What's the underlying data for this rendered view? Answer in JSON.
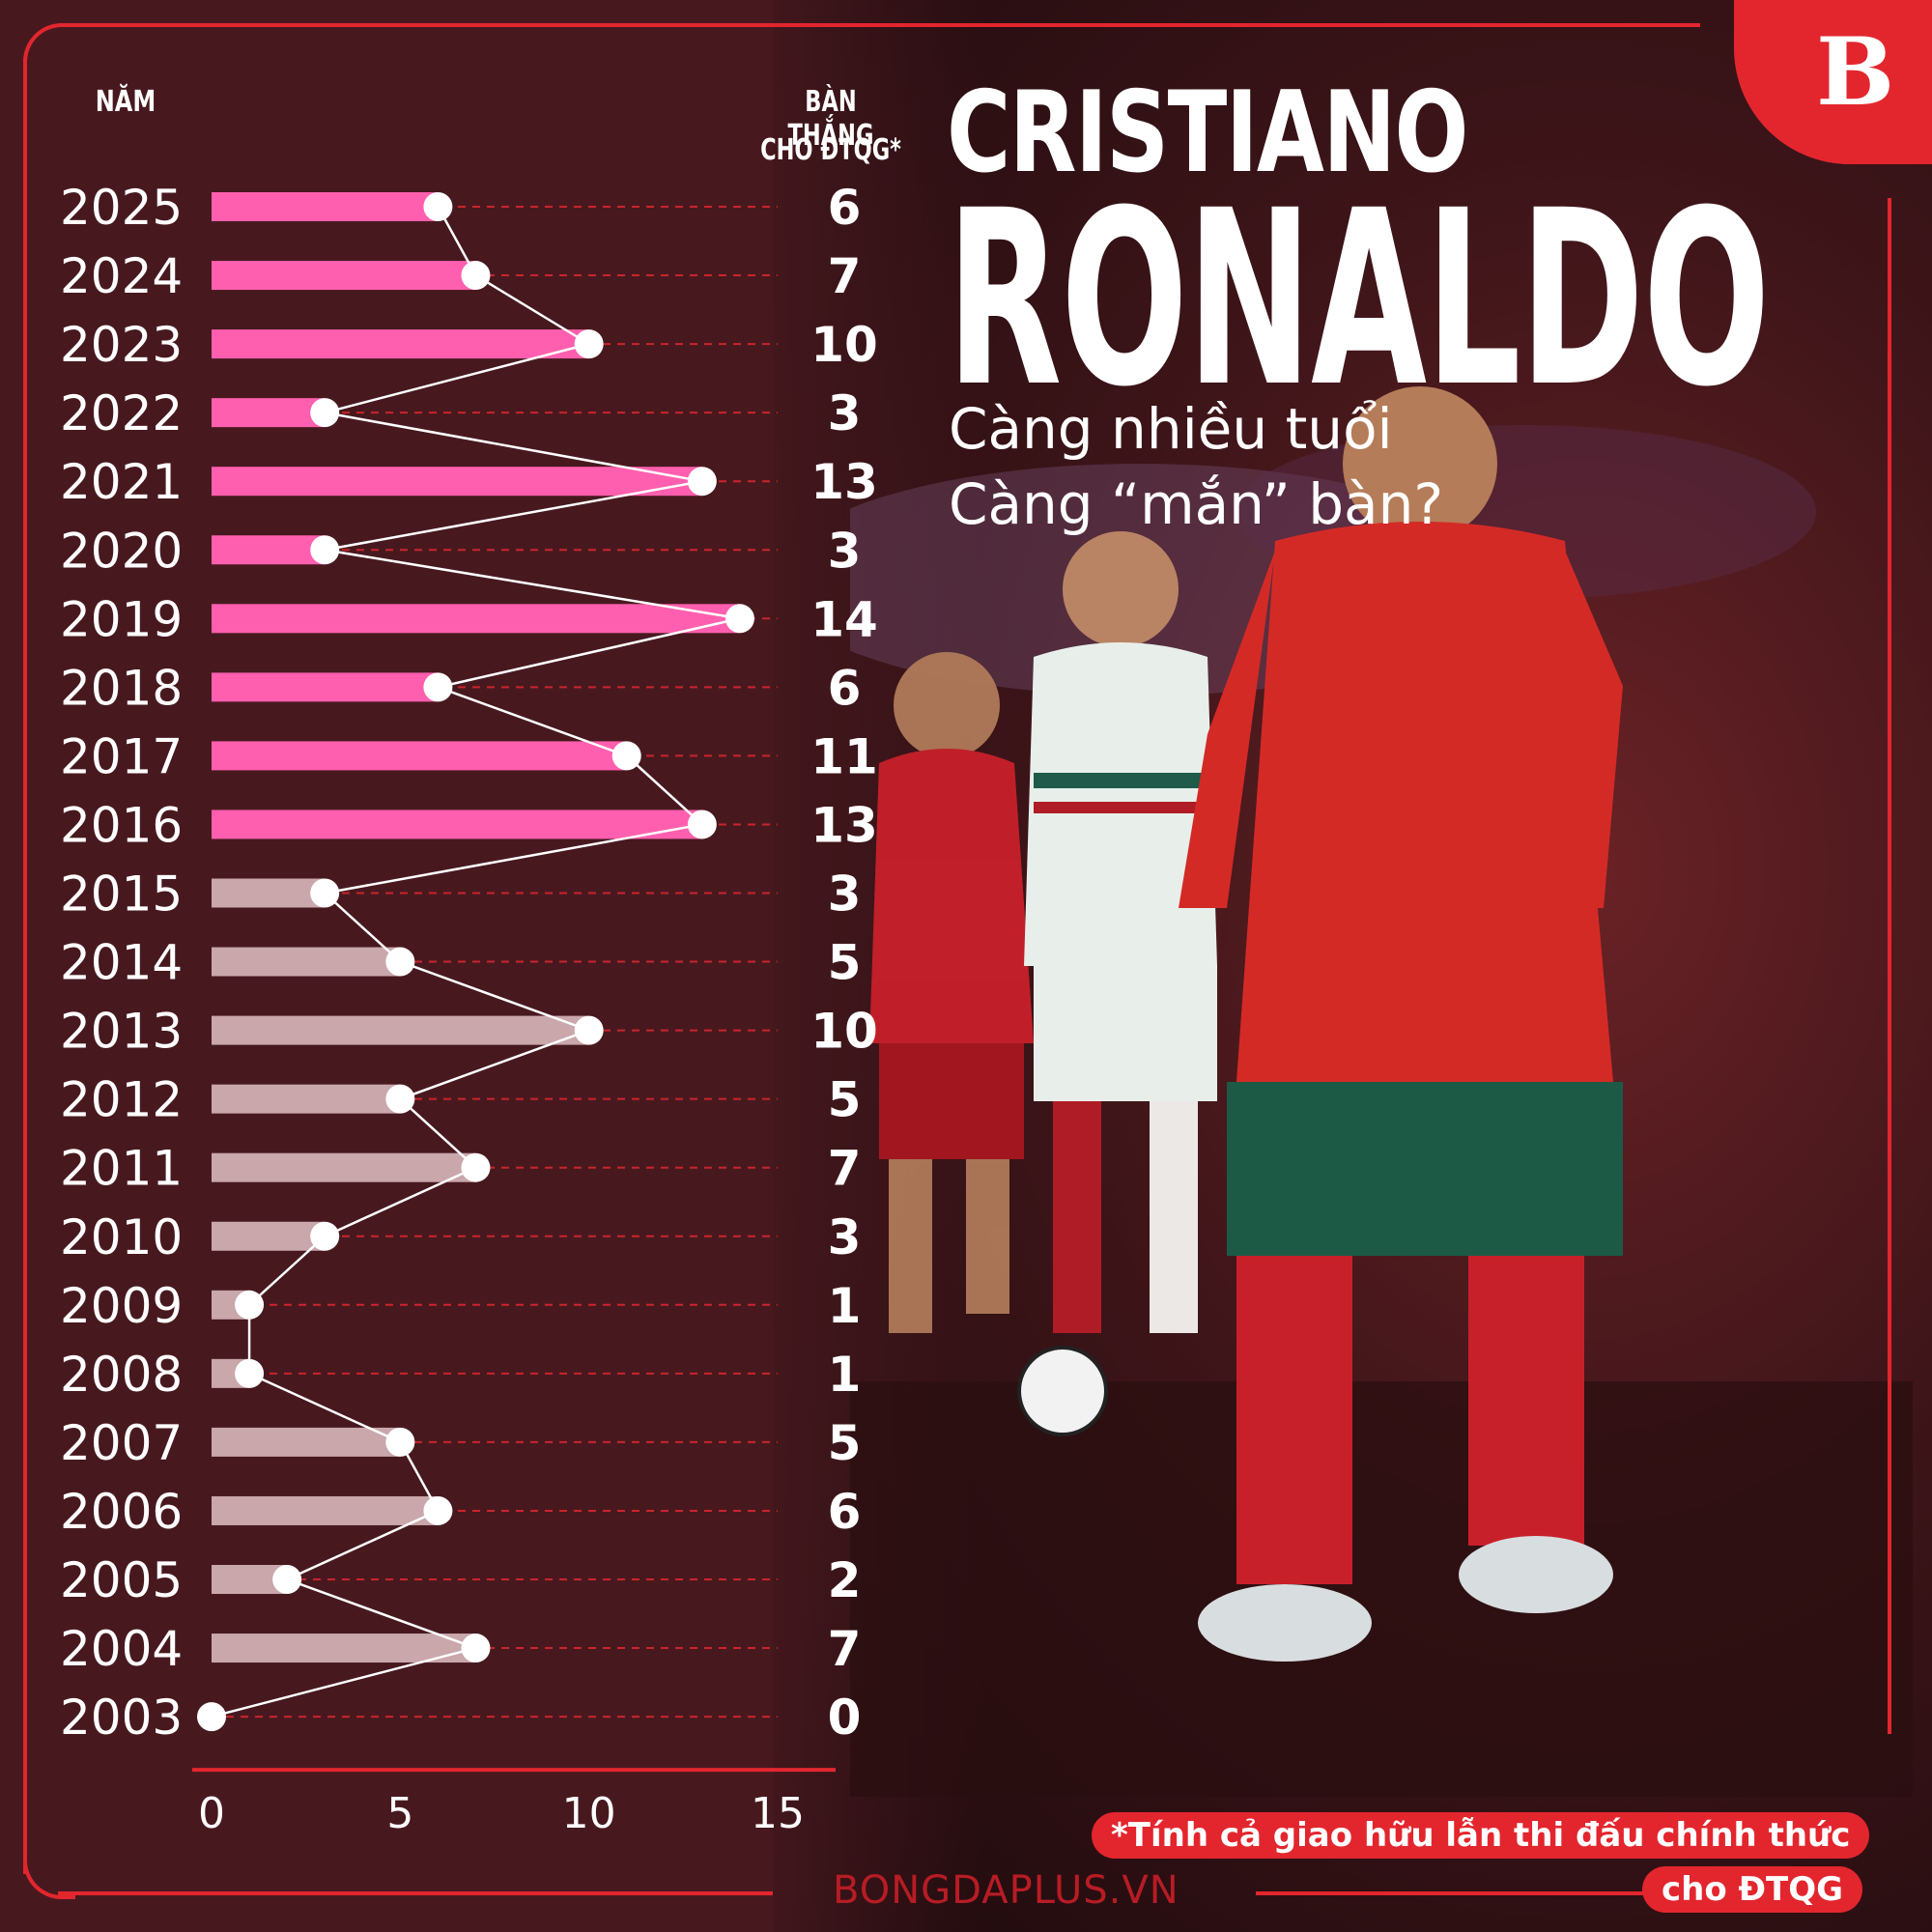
{
  "header": {
    "title_line1": "CRISTIANO",
    "title_line2": "RONALDO",
    "subtitle_line1": "Càng nhiều tuổi",
    "subtitle_line2": "Càng “mắn” bàn?"
  },
  "columns": {
    "year_label": "NĂM",
    "goals_label_line1": "BÀN THẮNG",
    "goals_label_line2": "CHO ĐTQG*"
  },
  "footnote": {
    "line1": "*Tính cả giao hữu lẫn thi đấu chính thức",
    "line2": "cho ĐTQG"
  },
  "source": "BONGDAPLUS.VN",
  "logo": "B",
  "colors": {
    "background": "#47191f",
    "accent_red": "#e3262e",
    "bar_recent": "#ff5fae",
    "bar_older": "#c9a7ab",
    "dot": "#ffffff",
    "gridline": "#e3262e"
  },
  "chart_data": {
    "type": "bar",
    "orientation": "horizontal",
    "categories": [
      "2025",
      "2024",
      "2023",
      "2022",
      "2021",
      "2020",
      "2019",
      "2018",
      "2017",
      "2016",
      "2015",
      "2014",
      "2013",
      "2012",
      "2011",
      "2010",
      "2009",
      "2008",
      "2007",
      "2006",
      "2005",
      "2004",
      "2003"
    ],
    "values": [
      6,
      7,
      10,
      3,
      13,
      3,
      14,
      6,
      11,
      13,
      3,
      5,
      10,
      5,
      7,
      3,
      1,
      1,
      5,
      6,
      2,
      7,
      0
    ],
    "highlight_from_year": 2016,
    "xlim": [
      0,
      15
    ],
    "xticks": [
      0,
      5,
      10,
      15
    ],
    "overlay": "line connecting values with white dots",
    "grid": "dashed horizontal lines"
  }
}
